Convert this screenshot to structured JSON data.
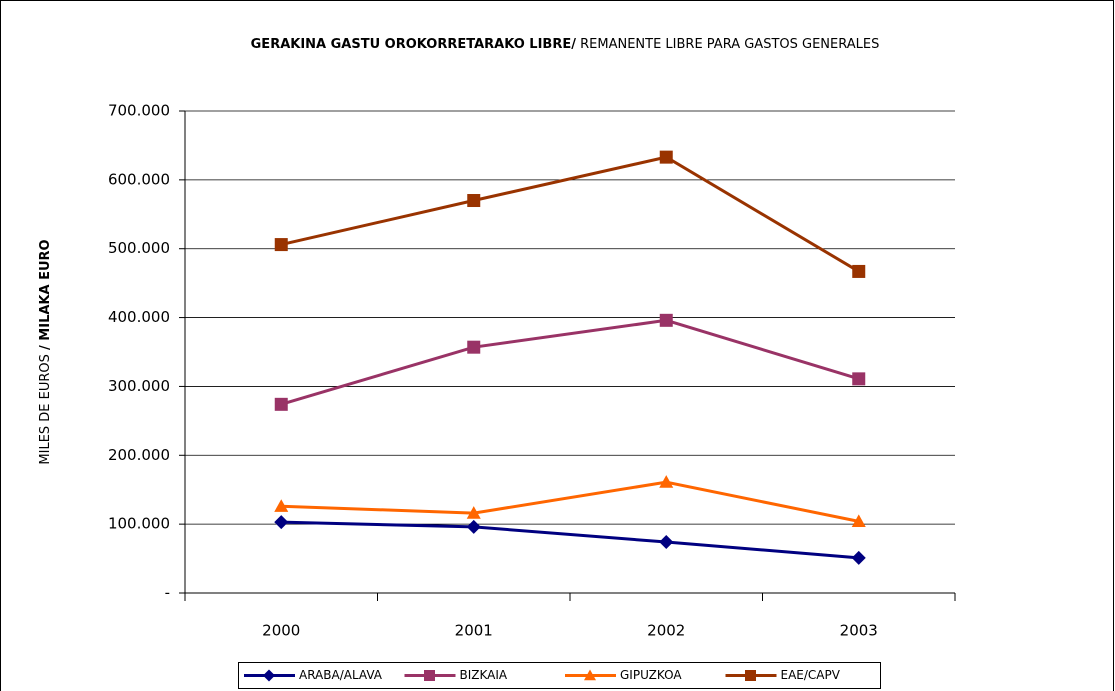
{
  "chart_data": {
    "type": "line",
    "title": [
      "GERAKINA GASTU OROKORRETARAKO LIBRE/",
      "REMANENTE LIBRE PARA GASTOS GENERALES"
    ],
    "y_label": [
      "MILES DE EUROS",
      "/ MILAKA EURO"
    ],
    "categories": [
      "2000",
      "2001",
      "2002",
      "2003"
    ],
    "series": [
      {
        "name": "ARABA/ALAVA",
        "color": "#000080",
        "marker": "diamond",
        "values": [
          103000,
          96000,
          74000,
          51000
        ]
      },
      {
        "name": "BIZKAIA",
        "color": "#993366",
        "marker": "square",
        "values": [
          274000,
          357000,
          396000,
          311000
        ]
      },
      {
        "name": "GIPUZKOA",
        "color": "#ff6600",
        "marker": "triangle",
        "values": [
          126000,
          116000,
          161000,
          104000
        ]
      },
      {
        "name": "EAE/CAPV",
        "color": "#993300",
        "marker": "square",
        "values": [
          506000,
          570000,
          633000,
          467000
        ]
      }
    ],
    "ylim": [
      0,
      700000
    ],
    "yticks": [
      {
        "value": 0,
        "label": "-"
      },
      {
        "value": 100000,
        "label": "100.000"
      },
      {
        "value": 200000,
        "label": "200.000"
      },
      {
        "value": 300000,
        "label": "300.000"
      },
      {
        "value": 400000,
        "label": "400.000"
      },
      {
        "value": 500000,
        "label": "500.000"
      },
      {
        "value": 600000,
        "label": "600.000"
      },
      {
        "value": 700000,
        "label": "700.000"
      }
    ],
    "grid": true,
    "legend": "bottom"
  }
}
